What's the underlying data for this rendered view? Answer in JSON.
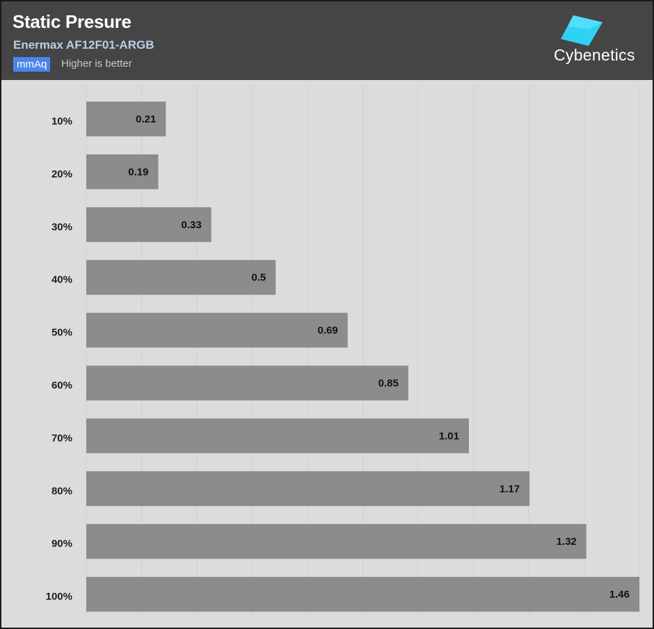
{
  "header": {
    "title": "Static Presure",
    "subtitle": "Enermax AF12F01-ARGB",
    "unit": "mmAq",
    "hint": "Higher is better"
  },
  "logo": {
    "text": "Cybenetics",
    "icon": "cyan-diamond-icon",
    "icon_color": "#2fd2f5"
  },
  "colors": {
    "header_bg": "#454545",
    "plot_bg": "#dcdcdc",
    "bar": "#8c8c8c",
    "grid": "#cfcfcf",
    "badge": "#4a86e8"
  },
  "chart_data": {
    "type": "bar",
    "orientation": "horizontal",
    "categories": [
      "10%",
      "20%",
      "30%",
      "40%",
      "50%",
      "60%",
      "70%",
      "80%",
      "90%",
      "100%"
    ],
    "values": [
      0.21,
      0.19,
      0.33,
      0.5,
      0.69,
      0.85,
      1.01,
      1.17,
      1.32,
      1.46
    ],
    "xlim": [
      0,
      1.46
    ],
    "grid": true,
    "legend": "none"
  }
}
